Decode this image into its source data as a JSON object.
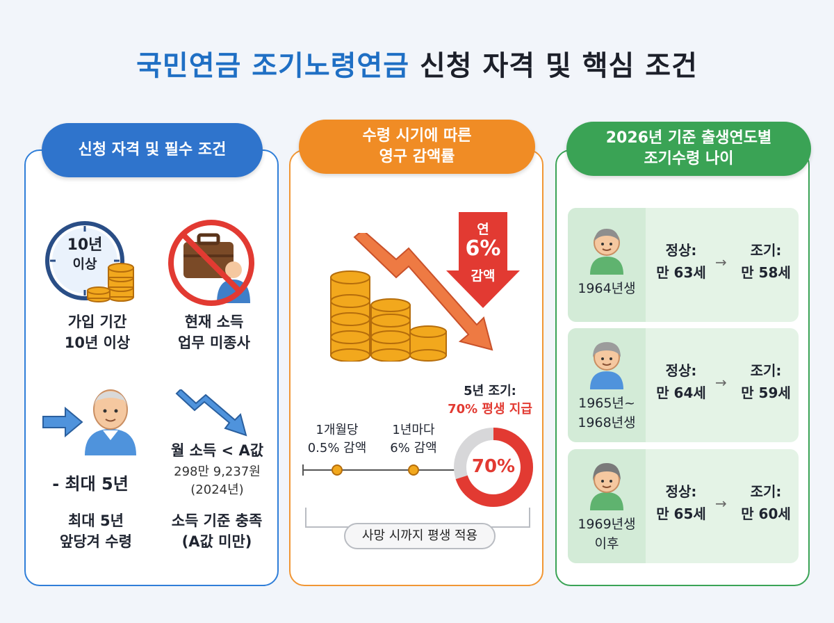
{
  "title": {
    "part1": "국민연금 조기노령연금",
    "part2": "신청 자격 및 핵심 조건"
  },
  "panel1": {
    "header": "신청 자격 및 필수 조건",
    "clock_line1": "10년",
    "clock_line2": "이상",
    "item1_line1": "가입 기간",
    "item1_line2": "10년 이상",
    "item2_line1": "현재 소득",
    "item2_line2": "업무 미종사",
    "max_label": "- 최대 5년",
    "item3_line1": "최대 5년",
    "item3_line2": "앞당겨 수령",
    "income_title": "월 소득 < A값",
    "income_amount": "298만 9,237원",
    "income_year": "(2024년)",
    "item4_line1": "소득 기준 충족",
    "item4_line2": "(A값 미만)"
  },
  "panel2": {
    "header_line1": "수령 시기에 따른",
    "header_line2": "영구 감액률",
    "badge_line1": "연",
    "badge_line2": "6%",
    "badge_line3": "감액",
    "early_line1": "5년 조기:",
    "early_line2": "70% 평생 지급",
    "tick1_line1": "1개월당",
    "tick1_line2": "0.5% 감액",
    "tick2_line1": "1년마다",
    "tick2_line2": "6% 감액",
    "donut_label": "70%",
    "donut_value": 70,
    "footer": "사망 시까지 평생 적용"
  },
  "panel3": {
    "header_line1": "2026년 기준 출생연도별",
    "header_line2": "조기수령 나이",
    "rows": [
      {
        "birth_line1": "1964년생",
        "birth_line2": "",
        "normal_label": "정상:",
        "normal_age": "만 63세",
        "early_label": "조기:",
        "early_age": "만 58세"
      },
      {
        "birth_line1": "1965년~",
        "birth_line2": "1968년생",
        "normal_label": "정상:",
        "normal_age": "만 64세",
        "early_label": "조기:",
        "early_age": "만 59세"
      },
      {
        "birth_line1": "1969년생",
        "birth_line2": "이후",
        "normal_label": "정상:",
        "normal_age": "만 65세",
        "early_label": "조기:",
        "early_age": "만 60세"
      }
    ]
  },
  "colors": {
    "blue": "#2f74cc",
    "orange": "#f08c25",
    "green": "#3aa355",
    "red": "#e23a32",
    "gold": "#f2a81d"
  }
}
